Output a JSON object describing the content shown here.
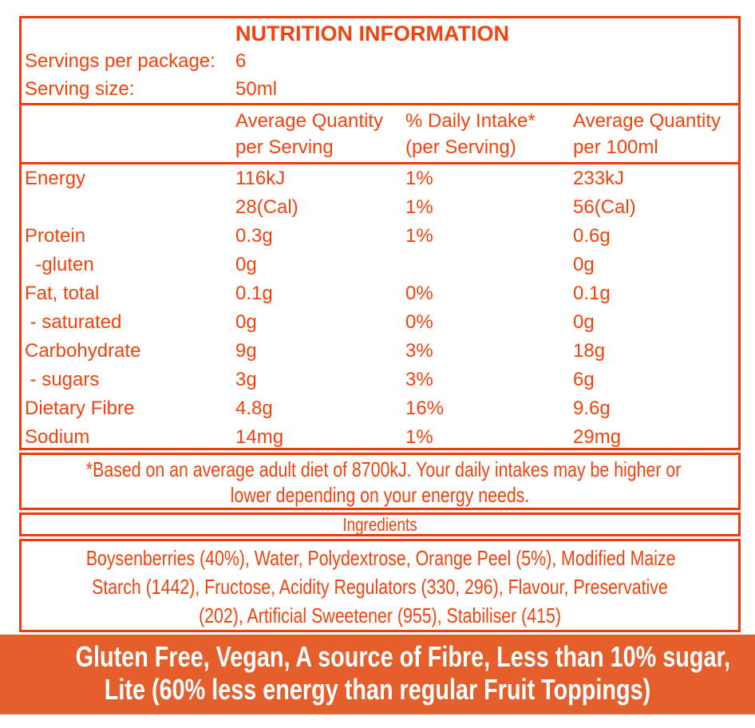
{
  "colors": {
    "accent_text": "#F2430E",
    "border": "#EE3B0C",
    "banner_background": "#E45F2B",
    "banner_text": "#FFFFFF",
    "page_background": "#FFFFFF"
  },
  "header": {
    "title": "NUTRITION INFORMATION",
    "servings_label": "Servings per package:",
    "servings_value": "6",
    "serving_size_label": "Serving size:",
    "serving_size_value": "50ml"
  },
  "table": {
    "columns": {
      "per_serving": {
        "line1": "Average Quantity",
        "line2": "per Serving"
      },
      "daily_intake": {
        "line1": "% Daily Intake*",
        "line2": "(per Serving)"
      },
      "per_100ml": {
        "line1": "Average Quantity",
        "line2": "per 100ml"
      }
    },
    "rows": [
      {
        "label": "Energy",
        "per_serving": "116kJ",
        "daily_intake": "1%",
        "per_100ml": "233kJ"
      },
      {
        "label": "",
        "per_serving": "28(Cal)",
        "daily_intake": "1%",
        "per_100ml": "56(Cal)"
      },
      {
        "label": "Protein",
        "per_serving": "0.3g",
        "daily_intake": "1%",
        "per_100ml": "0.6g"
      },
      {
        "label": "  -gluten",
        "per_serving": "0g",
        "daily_intake": "",
        "per_100ml": "0g"
      },
      {
        "label": "Fat, total",
        "per_serving": "0.1g",
        "daily_intake": "0%",
        "per_100ml": "0.1g"
      },
      {
        "label": " - saturated",
        "per_serving": "0g",
        "daily_intake": "0%",
        "per_100ml": "0g"
      },
      {
        "label": "Carbohydrate",
        "per_serving": "9g",
        "daily_intake": "3%",
        "per_100ml": "18g"
      },
      {
        "label": " - sugars",
        "per_serving": "3g",
        "daily_intake": "3%",
        "per_100ml": "6g"
      },
      {
        "label": "Dietary Fibre",
        "per_serving": "4.8g",
        "daily_intake": "16%",
        "per_100ml": "9.6g"
      },
      {
        "label": "Sodium",
        "per_serving": "14mg",
        "daily_intake": "1%",
        "per_100ml": "29mg"
      }
    ]
  },
  "footnote": {
    "lines": [
      "*Based on an average adult diet of 8700kJ. Your daily intakes may be higher or",
      "lower depending on your energy needs."
    ]
  },
  "ingredients": {
    "heading": "Ingredients",
    "lines": [
      "Boysenberries (40%), Water, Polydextrose, Orange Peel (5%), Modified Maize",
      "Starch (1442), Fructose, Acidity Regulators (330, 296), Flavour, Preservative",
      "(202), Artificial Sweetener (955), Stabiliser (415)"
    ]
  },
  "banner": {
    "lines": [
      "Gluten Free, Vegan, A source of Fibre, Less than 10% sugar,",
      "Lite (60% less energy than regular Fruit Toppings)"
    ]
  }
}
